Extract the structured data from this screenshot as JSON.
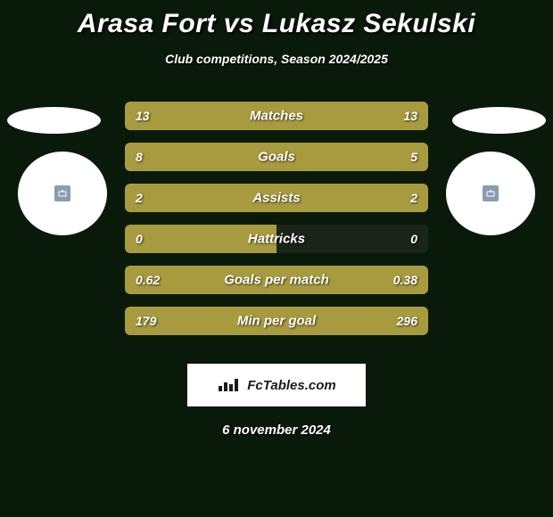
{
  "title": "Arasa Fort vs Lukasz Sekulski",
  "subtitle": "Club competitions, Season 2024/2025",
  "date": "6 november 2024",
  "logo_text": "FcTables.com",
  "colors": {
    "background": "#0a1a0a",
    "bar_fill": "#a89a3f",
    "bar_track": "#1a2418",
    "text": "#ffffff",
    "oval": "#ffffff"
  },
  "stats": [
    {
      "label": "Matches",
      "left_val": "13",
      "right_val": "13",
      "left_pct": 50,
      "right_pct": 50
    },
    {
      "label": "Goals",
      "left_val": "8",
      "right_val": "5",
      "left_pct": 61.5,
      "right_pct": 38.5
    },
    {
      "label": "Assists",
      "left_val": "2",
      "right_val": "2",
      "left_pct": 50,
      "right_pct": 50
    },
    {
      "label": "Hattricks",
      "left_val": "0",
      "right_val": "0",
      "left_pct": 50,
      "right_pct": 0
    },
    {
      "label": "Goals per match",
      "left_val": "0.62",
      "right_val": "0.38",
      "left_pct": 62,
      "right_pct": 38
    },
    {
      "label": "Min per goal",
      "left_val": "179",
      "right_val": "296",
      "left_pct": 37.7,
      "right_pct": 62.3
    }
  ]
}
